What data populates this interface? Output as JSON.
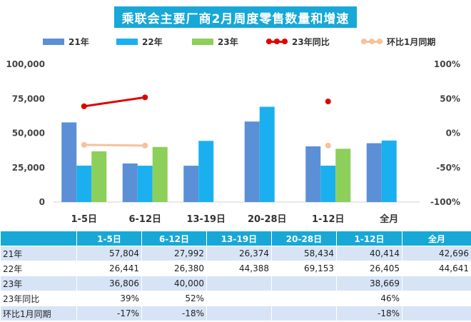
{
  "title": "乘联会主要厂商2月周度零售数量和增速",
  "legend": [
    {
      "label": "21年",
      "kind": "bar",
      "color": "#5b8fd6"
    },
    {
      "label": "22年",
      "kind": "bar",
      "color": "#1ab0ef"
    },
    {
      "label": "23年",
      "kind": "bar",
      "color": "#8ccf5a"
    },
    {
      "label": "23年同比",
      "kind": "line",
      "color": "#e00000"
    },
    {
      "label": "环比1月同期",
      "kind": "line",
      "color": "#f6c29c"
    }
  ],
  "chart_data": {
    "type": "bar",
    "title": "乘联会主要厂商2月周度零售数量和增速",
    "categories": [
      "1-5日",
      "6-12日",
      "13-19日",
      "20-28日",
      "1-12日",
      "全月"
    ],
    "series": [
      {
        "name": "21年",
        "type": "bar",
        "axis": "left",
        "values": [
          57804,
          27992,
          26374,
          58434,
          40414,
          42696
        ]
      },
      {
        "name": "22年",
        "type": "bar",
        "axis": "left",
        "values": [
          26441,
          26380,
          44388,
          69153,
          26405,
          44641
        ]
      },
      {
        "name": "23年",
        "type": "bar",
        "axis": "left",
        "values": [
          36806,
          40000,
          null,
          null,
          38669,
          null
        ]
      },
      {
        "name": "23年同比",
        "type": "line",
        "axis": "right",
        "values": [
          39,
          52,
          null,
          null,
          46,
          null
        ]
      },
      {
        "name": "环比1月同期",
        "type": "line",
        "axis": "right",
        "values": [
          -17,
          -18,
          null,
          null,
          -18,
          null
        ]
      }
    ],
    "y_left": {
      "ylim": [
        0,
        100000
      ],
      "ticks": [
        "0",
        "25,000",
        "50,000",
        "75,000",
        "100,000"
      ]
    },
    "y_right": {
      "ylim": [
        -100,
        100
      ],
      "ticks": [
        "-100%",
        "-50%",
        "0%",
        "50%",
        "100%"
      ]
    },
    "grid": false,
    "legend_position": "top"
  },
  "table": {
    "headers": [
      "",
      "1-5日",
      "6-12日",
      "13-19日",
      "20-28日",
      "1-12日",
      "全月"
    ],
    "rows": [
      {
        "label": "21年",
        "cells": [
          "57,804",
          "27,992",
          "26,374",
          "58,434",
          "40,414",
          "42,696"
        ]
      },
      {
        "label": "22年",
        "cells": [
          "26,441",
          "26,380",
          "44,388",
          "69,153",
          "26,405",
          "44,641"
        ]
      },
      {
        "label": "23年",
        "cells": [
          "36,806",
          "40,000",
          "",
          "",
          "38,669",
          ""
        ]
      },
      {
        "label": "23年同比",
        "cells": [
          "39%",
          "52%",
          "",
          "",
          "46%",
          ""
        ]
      },
      {
        "label": "环比1月同期",
        "cells": [
          "-17%",
          "-18%",
          "",
          "",
          "-18%",
          ""
        ]
      }
    ]
  }
}
